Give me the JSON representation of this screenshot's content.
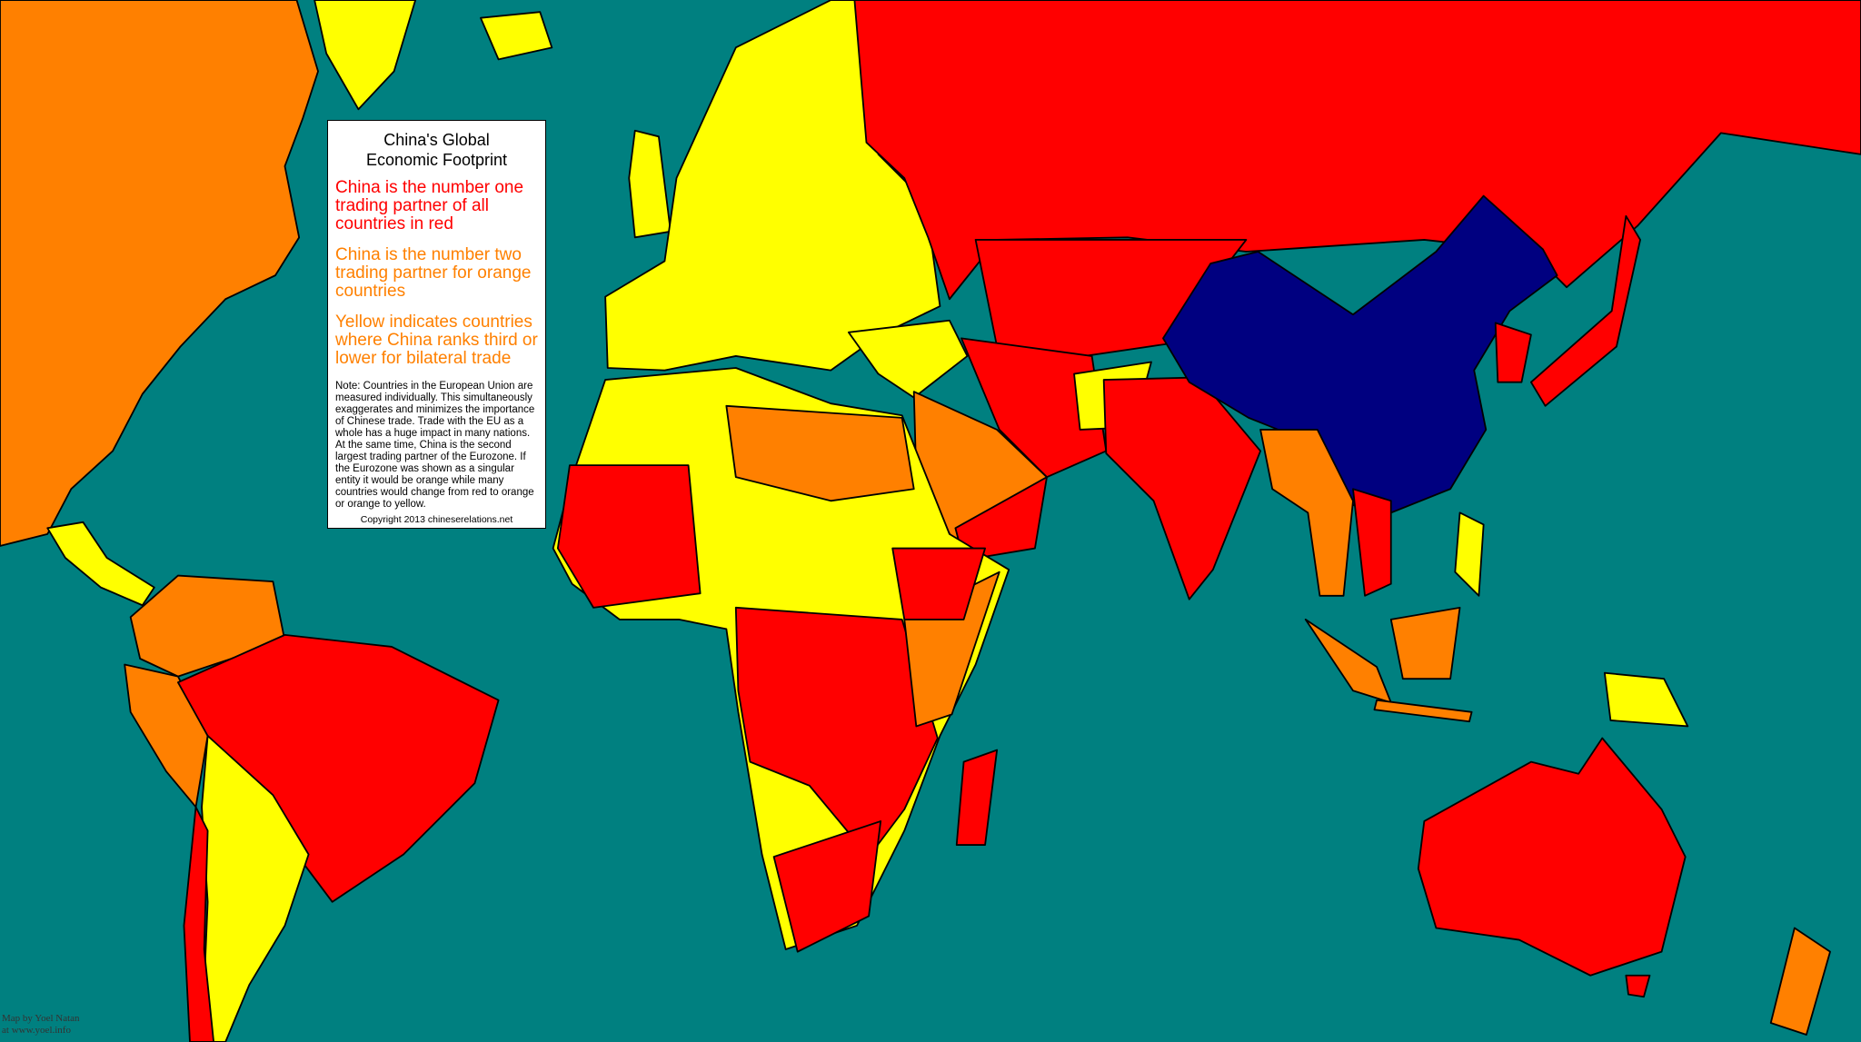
{
  "legend": {
    "title": [
      "China's Global",
      "Economic Footprint"
    ],
    "items": [
      "China is the number one trading partner of all countries in red",
      "China is the number two trading partner for orange countries",
      "Yellow indicates countries where China ranks third or lower for bilateral trade"
    ],
    "note": "Note: Countries in the European Union are measured individually. This simultaneously exaggerates and minimizes the importance of Chinese trade. Trade with the EU as a whole has a huge impact in many nations. At the same time, China is the second largest trading partner of the Eurozone. If the Eurozone was shown as a singular entity it would be orange while many countries would change from red to orange or orange to yellow.",
    "copyright": "Copyright 2013 chineserelations.net"
  },
  "credit": [
    "Map by Yoel Natan",
    "at www.yoel.info"
  ]
}
